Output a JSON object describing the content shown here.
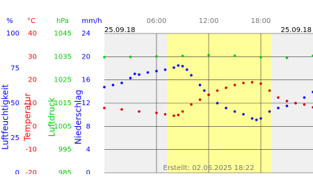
{
  "chart_data": {
    "type": "scatter",
    "date_labels": [
      "25.09.18",
      "25.09.18"
    ],
    "footer": "Erstellt: 02.06.2025 18:22",
    "xlim": [
      0,
      24
    ],
    "xticks": [
      {
        "value": 6,
        "label": "06:00"
      },
      {
        "value": 12,
        "label": "12:00"
      },
      {
        "value": 18,
        "label": "18:00"
      }
    ],
    "daylight": [
      7.25,
      19.25
    ],
    "grid": true,
    "axes": [
      {
        "label": "Luftfeuchtigkeit",
        "unit": "%",
        "color": "#0000ff",
        "lim": [
          0,
          100
        ],
        "ticks": [
          0,
          25,
          50,
          75,
          100
        ]
      },
      {
        "label": "Temperatur",
        "unit": "°C",
        "color": "#ff0000",
        "lim": [
          -20,
          40
        ],
        "ticks": [
          -20,
          -10,
          0,
          10,
          20,
          30,
          40
        ]
      },
      {
        "label": "Luftdruck",
        "unit": "hPa",
        "color": "#00cc00",
        "lim": [
          985,
          1045
        ],
        "ticks": [
          985,
          995,
          1005,
          1015,
          1025,
          1035,
          1045
        ]
      },
      {
        "label": "Niederschlag",
        "unit": "mm/h",
        "color": "#0000ff",
        "lim": [
          0,
          24
        ],
        "ticks": [
          0,
          4,
          8,
          12,
          16,
          20,
          24
        ]
      }
    ],
    "series": [
      {
        "axis": 0,
        "color": "#0000ff",
        "x": [
          0,
          1,
          2,
          3,
          3.5,
          4,
          5,
          6,
          7,
          8,
          8.5,
          9,
          9.5,
          10,
          11,
          11.5,
          12,
          13,
          14,
          15,
          16,
          17,
          17.5,
          18,
          19,
          20,
          21,
          22,
          23,
          24
        ],
        "values": [
          61.5,
          63,
          64.5,
          68,
          71,
          70.5,
          72,
          73,
          74,
          75.5,
          77,
          76.5,
          74,
          70,
          63,
          59,
          56,
          50,
          46.5,
          44,
          42,
          39,
          38,
          39,
          44,
          46.5,
          48,
          50,
          54,
          58
        ]
      },
      {
        "axis": 1,
        "color": "#dd0000",
        "x": [
          0,
          2,
          4,
          6,
          7,
          8,
          8.5,
          9,
          10,
          11,
          12,
          13,
          14,
          15,
          16,
          17,
          18,
          19,
          20,
          21,
          22,
          23,
          24
        ],
        "values": [
          7.9,
          7.3,
          6.4,
          5.8,
          5.2,
          4.6,
          4.9,
          6.4,
          9.4,
          11.5,
          13.6,
          15.4,
          16.6,
          17.8,
          18.7,
          19,
          18.4,
          15.4,
          12.4,
          10.9,
          10,
          9.4,
          8.2
        ]
      },
      {
        "axis": 2,
        "color": "#00cc00",
        "x": [
          0,
          3,
          6,
          9,
          12,
          15,
          18,
          21,
          24
        ],
        "values": [
          1034.8,
          1034.9,
          1035.1,
          1035.3,
          1035.7,
          1035.4,
          1034.8,
          1034.5,
          1035.4
        ]
      }
    ]
  }
}
